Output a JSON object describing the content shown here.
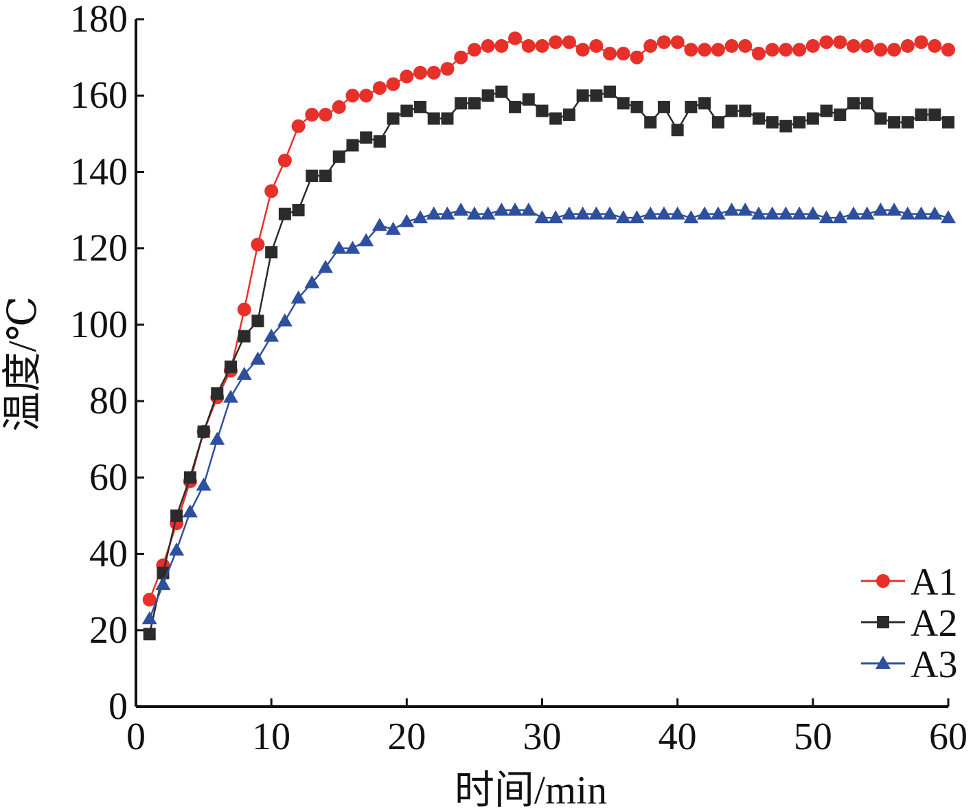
{
  "chart_data": {
    "type": "line",
    "title": "",
    "xlabel": "时间/min",
    "ylabel": "温度/℃",
    "xlim": [
      0,
      60
    ],
    "ylim": [
      0,
      180
    ],
    "xticks": [
      0,
      10,
      20,
      30,
      40,
      50,
      60
    ],
    "yticks": [
      0,
      20,
      40,
      60,
      80,
      100,
      120,
      140,
      160,
      180
    ],
    "grid": false,
    "legend": "bottom-right",
    "x": [
      1,
      2,
      3,
      4,
      5,
      6,
      7,
      8,
      9,
      10,
      11,
      12,
      13,
      14,
      15,
      16,
      17,
      18,
      19,
      20,
      21,
      22,
      23,
      24,
      25,
      26,
      27,
      28,
      29,
      30,
      31,
      32,
      33,
      34,
      35,
      36,
      37,
      38,
      39,
      40,
      41,
      42,
      43,
      44,
      45,
      46,
      47,
      48,
      49,
      50,
      51,
      52,
      53,
      54,
      55,
      56,
      57,
      58,
      59,
      60
    ],
    "series": [
      {
        "name": "A1",
        "color": "#e8302a",
        "marker": "circle",
        "values": [
          28,
          37,
          48,
          59,
          72,
          81,
          88,
          104,
          121,
          135,
          143,
          152,
          155,
          155,
          157,
          160,
          160,
          162,
          163,
          165,
          166,
          166,
          167,
          170,
          172,
          173,
          173,
          175,
          173,
          173,
          174,
          174,
          172,
          173,
          171,
          171,
          170,
          173,
          174,
          174,
          172,
          172,
          172,
          173,
          173,
          171,
          172,
          172,
          172,
          173,
          174,
          174,
          173,
          173,
          172,
          172,
          173,
          174,
          173,
          172
        ]
      },
      {
        "name": "A2",
        "color": "#2b2b2b",
        "marker": "square",
        "values": [
          19,
          35,
          50,
          60,
          72,
          82,
          89,
          97,
          101,
          119,
          129,
          130,
          139,
          139,
          144,
          147,
          149,
          148,
          154,
          156,
          157,
          154,
          154,
          158,
          158,
          160,
          161,
          157,
          159,
          156,
          154,
          155,
          160,
          160,
          161,
          158,
          157,
          153,
          157,
          151,
          157,
          158,
          153,
          156,
          156,
          154,
          153,
          152,
          153,
          154,
          156,
          155,
          158,
          158,
          154,
          153,
          153,
          155,
          155,
          153
        ]
      },
      {
        "name": "A3",
        "color": "#2e4f9e",
        "marker": "triangle",
        "values": [
          23,
          32,
          41,
          51,
          58,
          70,
          81,
          87,
          91,
          97,
          101,
          107,
          111,
          115,
          120,
          120,
          122,
          126,
          125,
          127,
          128,
          129,
          129,
          130,
          129,
          129,
          130,
          130,
          130,
          128,
          128,
          129,
          129,
          129,
          129,
          128,
          128,
          129,
          129,
          129,
          128,
          129,
          129,
          130,
          130,
          129,
          129,
          129,
          129,
          129,
          128,
          128,
          129,
          129,
          130,
          130,
          129,
          129,
          129,
          128
        ]
      }
    ]
  }
}
